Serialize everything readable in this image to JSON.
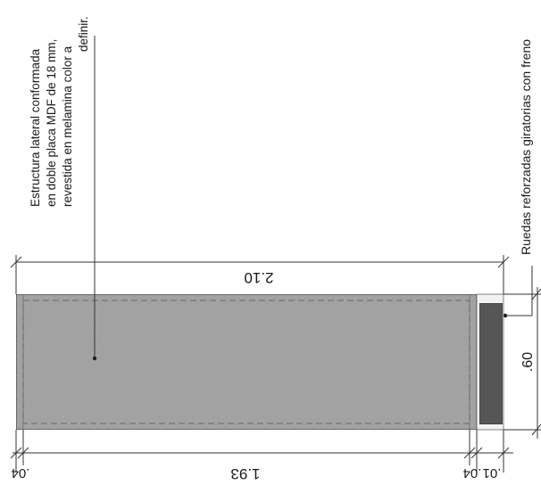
{
  "annotations": {
    "structure_note_line1": "Estructura lateral conformada",
    "structure_note_line2": "en doble placa MDF de 18 mm,",
    "structure_note_line3": "revestida en melamina color a",
    "structure_note_line4": "definir.",
    "wheels_note": "Ruedas reforzadas giratorias con freno"
  },
  "dimensions": {
    "overall_height": "2.10",
    "panel_height": "1.93",
    "top_thickness": ".04",
    "bottom_thickness": ".04",
    "base_gap": ".01",
    "depth": ".60"
  },
  "colors": {
    "panel_fill": "#a9a9a9",
    "wheel_fill": "#5a5a5a",
    "line": "#333333"
  }
}
